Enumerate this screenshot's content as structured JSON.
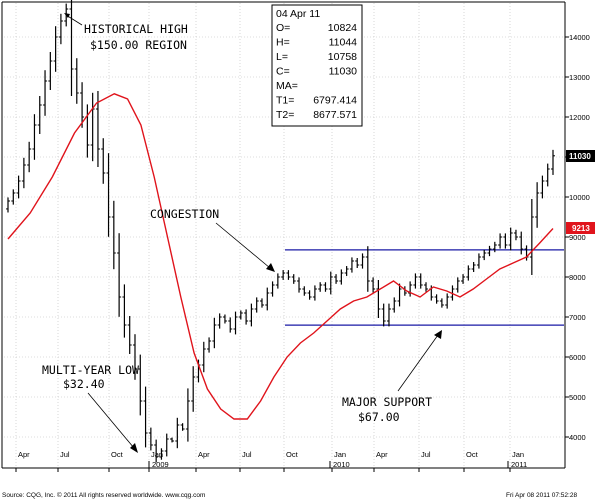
{
  "chart_data": {
    "type": "ohlc",
    "title": "",
    "y_ticks": [
      "14000",
      "13000",
      "12000",
      "11000",
      "10000",
      "9000",
      "8000",
      "7000",
      "6000",
      "5000",
      "4000"
    ],
    "ylim": [
      3200,
      15000
    ],
    "x_months": [
      "Apr",
      "Jul",
      "Oct",
      "Jan",
      "Apr",
      "Jul",
      "Oct",
      "Jan",
      "Apr",
      "Jul",
      "Oct",
      "Jan"
    ],
    "x_years": [
      "2009",
      "2010",
      "2011"
    ],
    "price_tag": "11030",
    "ma_tag": "9213",
    "info_box": {
      "date": "04 Apr 11",
      "rows": [
        {
          "label": "O=",
          "value": "10824"
        },
        {
          "label": "H=",
          "value": "11044"
        },
        {
          "label": "L=",
          "value": "10758"
        },
        {
          "label": "C=",
          "value": "11030"
        },
        {
          "label": "MA=",
          "value": ""
        },
        {
          "label": "T1=",
          "value": "6797.414"
        },
        {
          "label": "T2=",
          "value": "8677.571"
        }
      ]
    },
    "annotations": {
      "historical_high": [
        "HISTORICAL HIGH",
        "$150.00 REGION"
      ],
      "congestion": [
        "CONGESTION"
      ],
      "multi_year_low": [
        "MULTI-YEAR LOW",
        "$32.40"
      ],
      "major_support": [
        "MAJOR SUPPORT",
        "$67.00"
      ]
    },
    "support_levels": [
      8677.571,
      6797.414
    ],
    "ma_series": [
      [
        0,
        8950
      ],
      [
        5,
        9600
      ],
      [
        10,
        10500
      ],
      [
        15,
        11600
      ],
      [
        20,
        12350
      ],
      [
        24,
        12580
      ],
      [
        27,
        12450
      ],
      [
        30,
        11800
      ],
      [
        33,
        10500
      ],
      [
        36,
        9000
      ],
      [
        39,
        7500
      ],
      [
        42,
        6100
      ],
      [
        45,
        5200
      ],
      [
        48,
        4700
      ],
      [
        51,
        4450
      ],
      [
        54,
        4450
      ],
      [
        57,
        4900
      ],
      [
        60,
        5500
      ],
      [
        63,
        6000
      ],
      [
        66,
        6350
      ],
      [
        69,
        6600
      ],
      [
        72,
        6900
      ],
      [
        75,
        7200
      ],
      [
        78,
        7400
      ],
      [
        81,
        7500
      ],
      [
        84,
        7700
      ],
      [
        87,
        7900
      ],
      [
        90,
        7650
      ],
      [
        93,
        7500
      ],
      [
        96,
        7750
      ],
      [
        99,
        7650
      ],
      [
        102,
        7500
      ],
      [
        105,
        7700
      ],
      [
        108,
        7950
      ],
      [
        111,
        8200
      ],
      [
        114,
        8350
      ],
      [
        117,
        8500
      ],
      [
        120,
        8850
      ],
      [
        123,
        9213
      ]
    ],
    "weekly_close": [
      9900,
      10100,
      10400,
      10800,
      11200,
      11800,
      12300,
      12900,
      13400,
      14000,
      14400,
      14700,
      13200,
      12600,
      12000,
      11300,
      12200,
      11200,
      10600,
      9500,
      8600,
      7500,
      6800,
      6300,
      5700,
      4900,
      4100,
      3800,
      3500,
      3650,
      3950,
      3900,
      4300,
      4200,
      4900,
      5500,
      5800,
      6200,
      6400,
      6800,
      7000,
      6900,
      6700,
      7000,
      7100,
      6900,
      7200,
      7400,
      7300,
      7600,
      7800,
      8000,
      8100,
      8000,
      7900,
      7700,
      7600,
      7500,
      7700,
      7800,
      7700,
      8000,
      7900,
      8100,
      8200,
      8400,
      8300,
      8500,
      7900,
      7700,
      7200,
      6900,
      7200,
      7400,
      7700,
      7600,
      7800,
      8000,
      7800,
      7700,
      7500,
      7400,
      7300,
      7500,
      7700,
      7900,
      8000,
      8200,
      8300,
      8500,
      8600,
      8700,
      8800,
      9000,
      8800,
      9100,
      9000,
      8700,
      8500,
      9500,
      10100,
      10400,
      10700,
      11030
    ],
    "footer_left": "Source: CQG, Inc. © 2011 All rights reserved worldwide. www.cqg.com",
    "footer_right": "Fri Apr 08 2011 07:52:28"
  }
}
